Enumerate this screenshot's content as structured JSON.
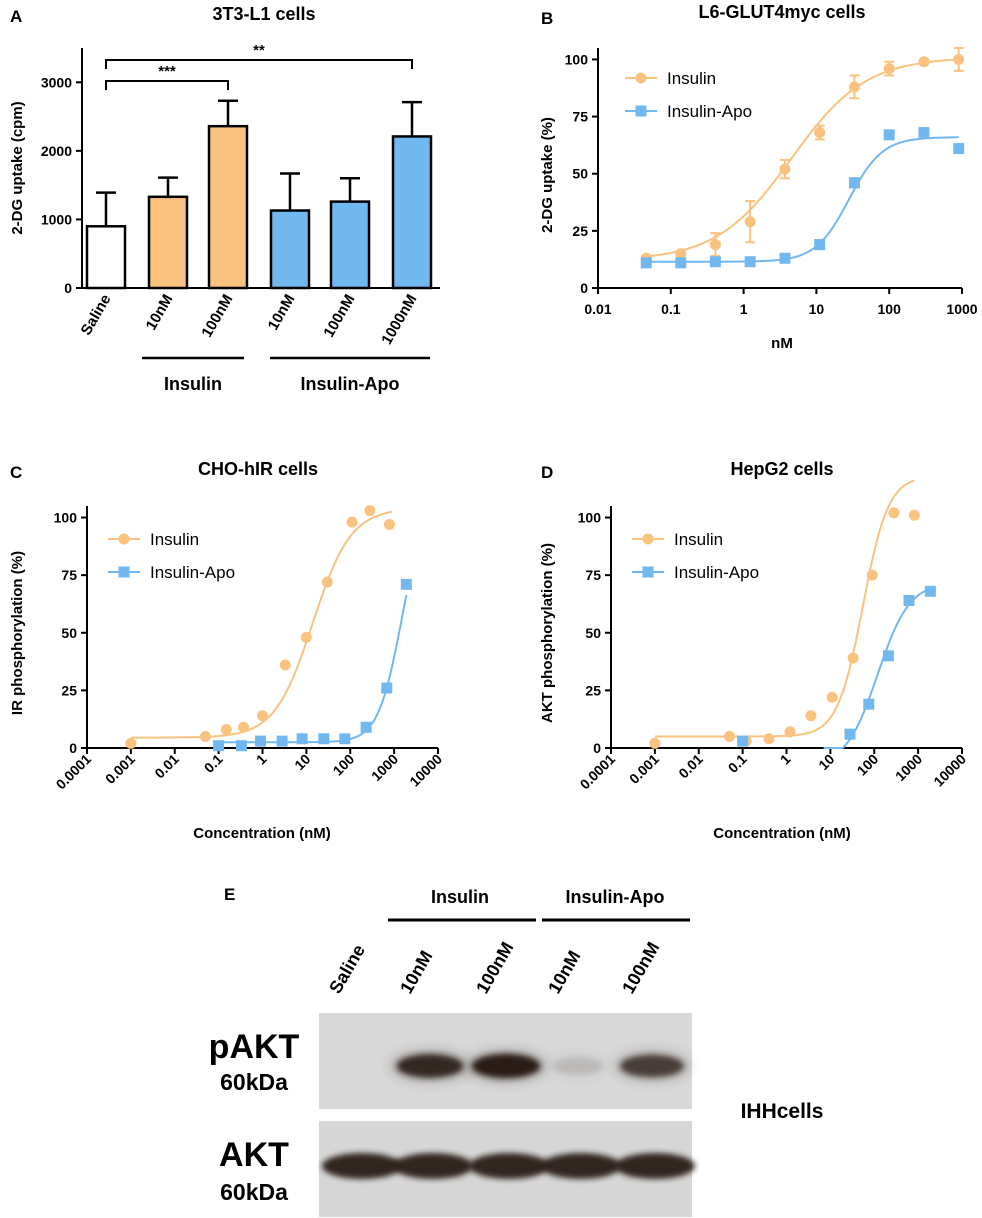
{
  "colors": {
    "insulin": "#F9C27E",
    "insulin_apo": "#72B8F0",
    "axis": "#000000",
    "blot_bg": "#d8d8d8",
    "band": "#2a1a14"
  },
  "chart_data": [
    {
      "panel": "A",
      "type": "bar",
      "title": "3T3-L1 cells",
      "ylabel": "2-DG uptake (cpm)",
      "ylim": [
        0,
        3500
      ],
      "yticks": [
        0,
        1000,
        2000,
        3000
      ],
      "categories": [
        "Saline",
        "10nM",
        "100nM",
        "10nM",
        "100nM",
        "1000nM"
      ],
      "values": [
        900,
        1330,
        2360,
        1130,
        1260,
        2210
      ],
      "errors": [
        490,
        280,
        370,
        540,
        340,
        500
      ],
      "groups": [
        "saline",
        "insulin",
        "insulin",
        "insulin_apo",
        "insulin_apo",
        "insulin_apo"
      ],
      "group_labels": {
        "insulin": "Insulin",
        "insulin_apo": "Insulin-Apo"
      },
      "significance": [
        {
          "from": 0,
          "to": 2,
          "label": "***"
        },
        {
          "from": 0,
          "to": 5,
          "label": "**"
        }
      ]
    },
    {
      "panel": "B",
      "type": "line",
      "title": "L6-GLUT4myc cells",
      "xlabel": "nM",
      "ylabel": "2-DG uptake (%)",
      "xscale": "log",
      "xlim": [
        0.01,
        1000
      ],
      "xticks": [
        "0.01",
        "0.1",
        "1",
        "10",
        "100",
        "1000"
      ],
      "ylim": [
        0,
        105
      ],
      "yticks": [
        0,
        25,
        50,
        75,
        100
      ],
      "legend": "top-left",
      "series": [
        {
          "name": "Insulin",
          "key": "insulin",
          "marker": "circle",
          "x": [
            0.046,
            0.137,
            0.41,
            1.23,
            3.7,
            11.1,
            33.3,
            100,
            300,
            900
          ],
          "y": [
            13,
            15,
            19,
            29,
            52,
            68,
            88,
            96,
            99,
            100
          ],
          "err": [
            1,
            1,
            5,
            9,
            4,
            3,
            5,
            3,
            1,
            5
          ],
          "fit": {
            "bottom": 12,
            "top": 101,
            "ec50": 4.5,
            "hill": 0.85
          }
        },
        {
          "name": "Insulin-Apo",
          "key": "insulin_apo",
          "marker": "square",
          "x": [
            0.046,
            0.137,
            0.41,
            1.23,
            3.7,
            11.1,
            33.3,
            100,
            300,
            900
          ],
          "y": [
            11,
            11,
            11.5,
            11.5,
            13,
            19,
            46,
            67,
            68,
            61
          ],
          "err": [
            0,
            0,
            0,
            0,
            0,
            2,
            2,
            0,
            0,
            0
          ],
          "fit": {
            "bottom": 11.5,
            "top": 66,
            "ec50": 28,
            "hill": 1.9
          }
        }
      ]
    },
    {
      "panel": "C",
      "type": "line",
      "title": "CHO-hIR cells",
      "xlabel": "Concentration (nM)",
      "ylabel": "IR phosphorylation (%)",
      "xscale": "log",
      "xlim": [
        0.0001,
        10000
      ],
      "xticks": [
        "0.0001",
        "0.001",
        "0.01",
        "0.1",
        "1",
        "10",
        "100",
        "1000",
        "10000"
      ],
      "ylim": [
        0,
        105
      ],
      "yticks": [
        0,
        25,
        50,
        75,
        100
      ],
      "legend": "top-left",
      "series": [
        {
          "name": "Insulin",
          "key": "insulin",
          "marker": "circle",
          "x": [
            0.001,
            0.05,
            0.15,
            0.37,
            1,
            3.3,
            10,
            30,
            110,
            280,
            780
          ],
          "y": [
            2,
            5,
            8,
            9,
            14,
            36,
            48,
            72,
            98,
            103,
            97
          ],
          "fit": {
            "bottom": 4.5,
            "top": 104,
            "ec50": 14,
            "hill": 1.0,
            "xmin": 0.001,
            "xmax": 900
          }
        },
        {
          "name": "Insulin-Apo",
          "key": "insulin_apo",
          "marker": "square",
          "x": [
            0.1,
            0.33,
            0.9,
            2.8,
            8,
            25,
            75,
            230,
            680,
            1900
          ],
          "y": [
            1,
            1,
            3,
            3,
            4,
            4,
            4,
            9,
            26,
            71
          ],
          "fit": {
            "bottom": 2.5,
            "top": 110,
            "ec50": 1500,
            "hill": 1.6,
            "xmin": 0.1,
            "xmax": 1900
          }
        }
      ]
    },
    {
      "panel": "D",
      "type": "line",
      "title": "HepG2 cells",
      "xlabel": "Concentration (nM)",
      "ylabel": "AKT phosphorylation (%)",
      "xscale": "log",
      "xlim": [
        0.0001,
        10000
      ],
      "xticks": [
        "0.0001",
        "0.001",
        "0.01",
        "0.1",
        "1",
        "10",
        "100",
        "1000",
        "10000"
      ],
      "ylim": [
        0,
        105
      ],
      "yticks": [
        0,
        25,
        50,
        75,
        100
      ],
      "legend": "top-left",
      "series": [
        {
          "name": "Insulin",
          "key": "insulin",
          "marker": "circle",
          "x": [
            0.001,
            0.05,
            0.12,
            0.4,
            1.2,
            3.6,
            11,
            33,
            90,
            280,
            820
          ],
          "y": [
            2,
            5,
            3,
            4,
            7,
            14,
            22,
            39,
            75,
            102,
            101
          ],
          "fit": {
            "bottom": 5,
            "top": 118,
            "ec50": 55,
            "hill": 1.5,
            "xmin": 0.001,
            "xmax": 820
          }
        },
        {
          "name": "Insulin-Apo",
          "key": "insulin_apo",
          "marker": "square",
          "x": [
            0.1,
            28,
            75,
            210,
            620,
            1900
          ],
          "y": [
            3,
            6,
            19,
            40,
            64,
            68
          ],
          "fit": {
            "bottom": -8,
            "top": 72,
            "ec50": 120,
            "hill": 1.2,
            "xmin": 7,
            "xmax": 1900
          }
        }
      ]
    }
  ],
  "panel_a": {
    "letter": "A",
    "group_insulin": "Insulin",
    "group_insulin_apo": "Insulin-Apo"
  },
  "panel_b": {
    "letter": "B"
  },
  "panel_c": {
    "letter": "C"
  },
  "panel_d": {
    "letter": "D"
  },
  "panel_e": {
    "letter": "E",
    "group_insulin": "Insulin",
    "group_insulin_apo": "Insulin-Apo",
    "lanes": [
      "Saline",
      "10nM",
      "100nM",
      "10nM",
      "100nM"
    ],
    "pakt_label": "pAKT",
    "pakt_kda": "60kDa",
    "akt_label": "AKT",
    "akt_kda": "60kDa",
    "cell_label": "IHHcells",
    "pakt_intensity": [
      0.0,
      0.9,
      1.0,
      0.08,
      0.75
    ],
    "akt_intensity": [
      1.0,
      1.0,
      1.0,
      1.0,
      1.0
    ]
  }
}
